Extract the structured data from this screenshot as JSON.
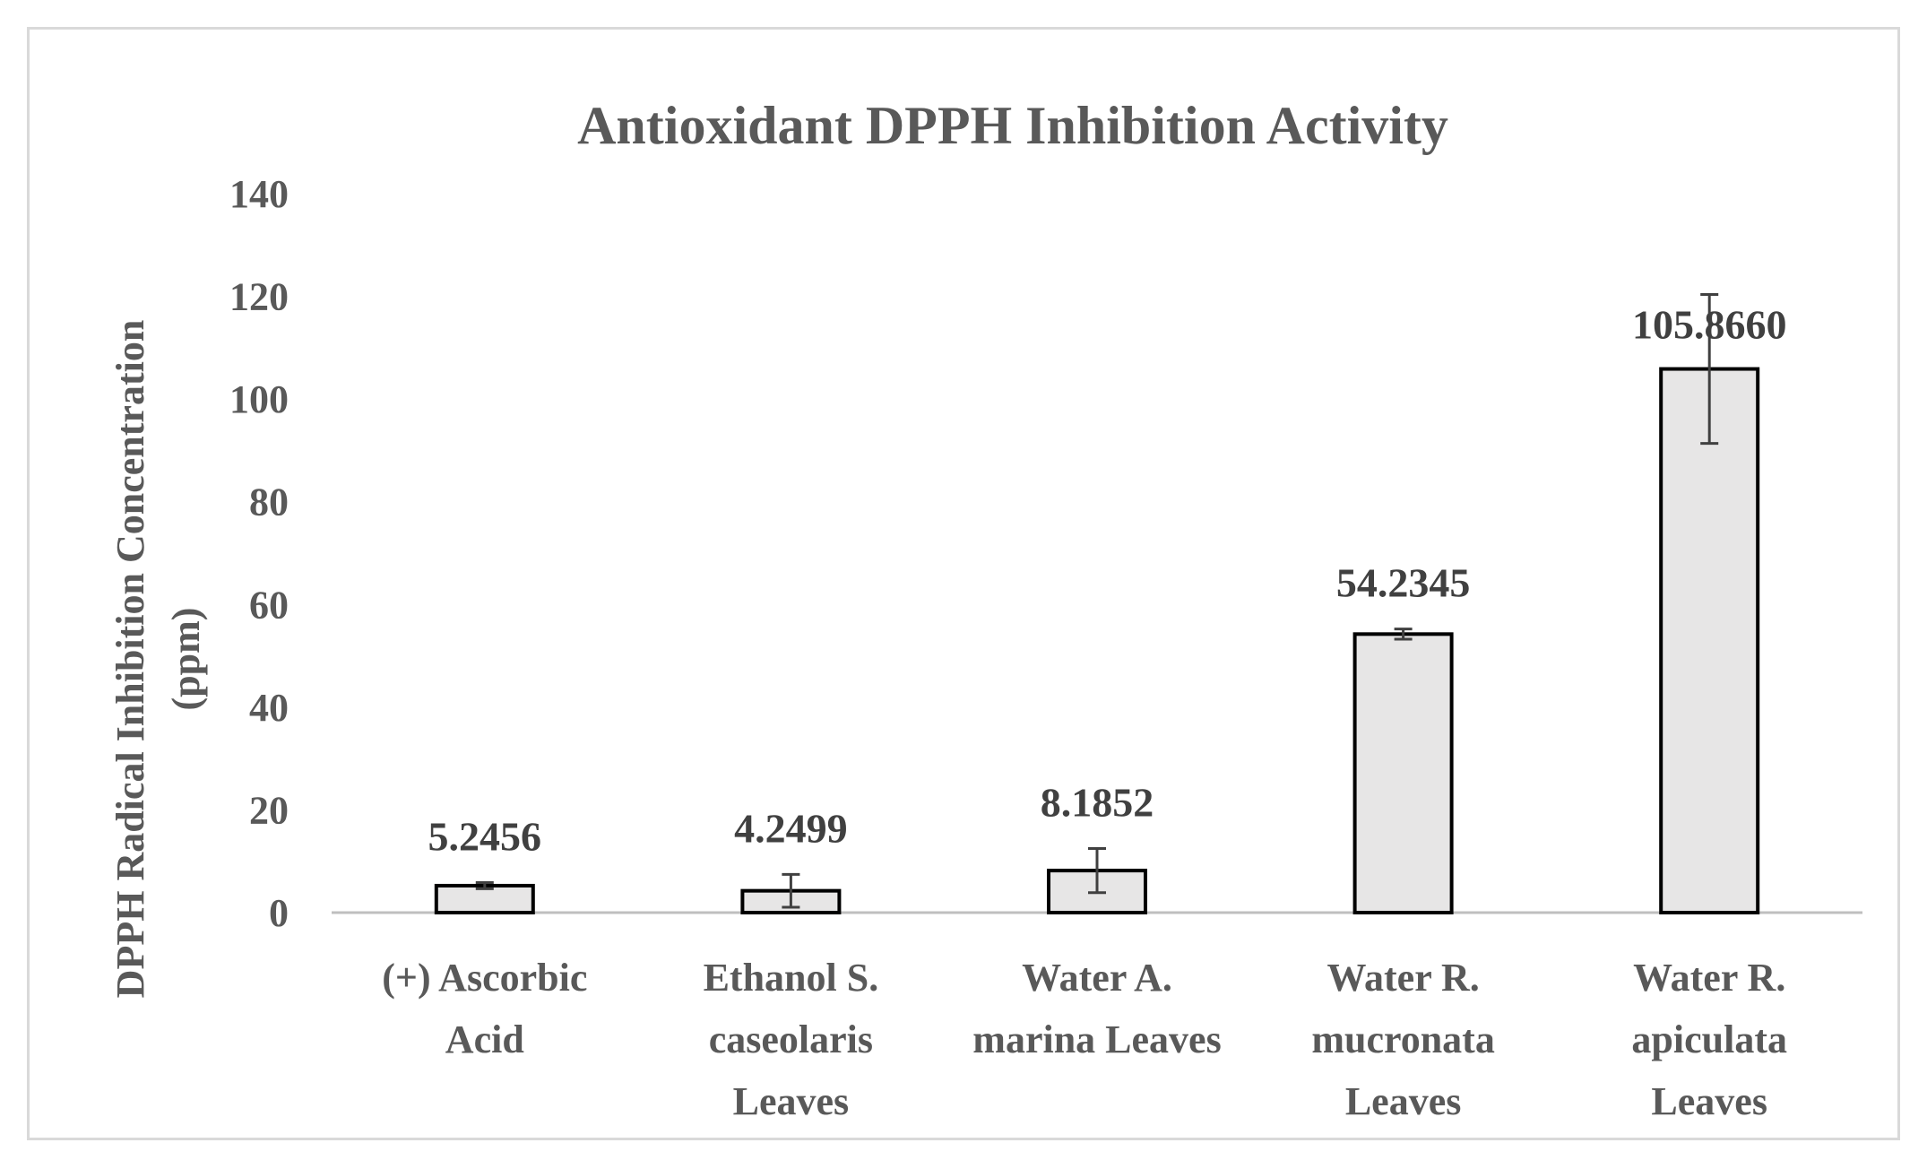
{
  "chart_data": {
    "type": "bar",
    "title": "Antioxidant DPPH Inhibition Activity",
    "ylabel_lines": [
      "DPPH Radical Inhibition Concentration",
      "(ppm)"
    ],
    "xlabel": "",
    "ylim": [
      0,
      140
    ],
    "yticks": [
      0,
      20,
      40,
      60,
      80,
      100,
      120,
      140
    ],
    "categories": [
      [
        "(+) Ascorbic",
        "Acid"
      ],
      [
        "Ethanol S.",
        "caseolaris",
        "Leaves"
      ],
      [
        "Water A.",
        "marina Leaves"
      ],
      [
        "Water R.",
        "mucronata",
        "Leaves"
      ],
      [
        "Water R.",
        "apiculata",
        "Leaves"
      ]
    ],
    "values": [
      5.2456,
      4.2499,
      8.1852,
      54.2345,
      105.866
    ],
    "data_labels": [
      "5.2456",
      "4.2499",
      "8.1852",
      "54.2345",
      "105.8660"
    ],
    "error": [
      0.6,
      3.2,
      4.3,
      1.0,
      14.5
    ],
    "grid": false,
    "legend": "none",
    "colors": {
      "bar_fill": "#e7e6e6",
      "bar_stroke": "#000000",
      "text": "#595959",
      "axis": "#bfbfbf"
    }
  }
}
